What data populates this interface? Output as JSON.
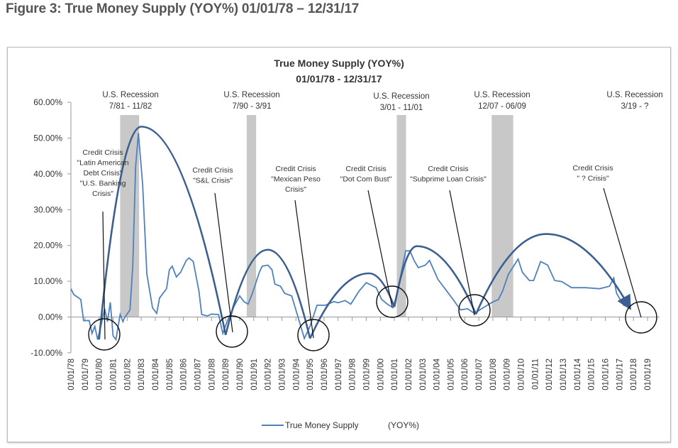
{
  "page_title": "Figure 3: True Money Supply (YOY%)  01/01/78 – 12/31/17",
  "chart_data": {
    "type": "line",
    "title": "True Money Supply (YOY%)",
    "subtitle": "01/01/78 - 12/31/17",
    "ylim": [
      -10,
      60
    ],
    "y_ticks": [
      "-10.00%",
      "0.00%",
      "10.00%",
      "20.00%",
      "30.00%",
      "40.00%",
      "50.00%",
      "60.00%"
    ],
    "x_ticks": [
      "01/01/78",
      "01/01/79",
      "01/01/80",
      "01/01/81",
      "01/01/82",
      "01/01/83",
      "01/01/84",
      "01/01/85",
      "01/01/86",
      "01/01/87",
      "01/01/88",
      "01/01/89",
      "01/01/90",
      "01/01/91",
      "01/01/92",
      "01/01/93",
      "01/01/94",
      "01/01/95",
      "01/01/96",
      "01/01/97",
      "01/01/98",
      "01/01/99",
      "01/01/00",
      "01/01/01",
      "01/01/02",
      "01/01/03",
      "01/01/04",
      "01/01/05",
      "01/01/06",
      "01/01/07",
      "01/01/08",
      "01/01/09",
      "01/01/10",
      "01/01/11",
      "01/01/12",
      "01/01/13",
      "01/01/14",
      "01/01/15",
      "01/01/16",
      "01/01/17",
      "01/01/18",
      "01/01/19"
    ],
    "grid": false,
    "legend": {
      "position": "bottom",
      "label": "True Money Supply",
      "suffix": "(YOY%)"
    },
    "series": [
      {
        "name": "True Money Supply",
        "color": "#4f81bd",
        "points": [
          [
            1978.0,
            7.9
          ],
          [
            1978.2,
            6.3
          ],
          [
            1978.7,
            4.9
          ],
          [
            1978.9,
            -1
          ],
          [
            1979.3,
            -1
          ],
          [
            1979.5,
            -4.6
          ],
          [
            1979.7,
            -2.6
          ],
          [
            1979.9,
            -6.3
          ],
          [
            1980.2,
            -1.3
          ],
          [
            1980.4,
            2.3
          ],
          [
            1980.6,
            -1.3
          ],
          [
            1980.8,
            4.1
          ],
          [
            1981.0,
            -5.3
          ],
          [
            1981.2,
            -6.3
          ],
          [
            1981.5,
            0.7
          ],
          [
            1981.7,
            -1.3
          ],
          [
            1981.8,
            -0.3
          ],
          [
            1982.2,
            2
          ],
          [
            1982.4,
            14.5
          ],
          [
            1982.6,
            42
          ],
          [
            1982.8,
            51.4
          ],
          [
            1983.1,
            37
          ],
          [
            1983.4,
            12
          ],
          [
            1983.8,
            2.6
          ],
          [
            1984.1,
            1
          ],
          [
            1984.3,
            5.3
          ],
          [
            1984.8,
            7.9
          ],
          [
            1985.0,
            13.2
          ],
          [
            1985.2,
            14.2
          ],
          [
            1985.5,
            11.2
          ],
          [
            1985.8,
            12.5
          ],
          [
            1986.2,
            15.8
          ],
          [
            1986.4,
            16.5
          ],
          [
            1986.7,
            15.5
          ],
          [
            1987.1,
            7.3
          ],
          [
            1987.3,
            0.7
          ],
          [
            1987.7,
            0.3
          ],
          [
            1988.0,
            0.8
          ],
          [
            1988.5,
            0.7
          ],
          [
            1988.8,
            -4.6
          ],
          [
            1989.1,
            -1.3
          ],
          [
            1989.6,
            3
          ],
          [
            1990.0,
            5.9
          ],
          [
            1990.3,
            4.3
          ],
          [
            1990.6,
            3.6
          ],
          [
            1990.9,
            6.6
          ],
          [
            1991.4,
            12.5
          ],
          [
            1991.6,
            14.2
          ],
          [
            1992.0,
            14.5
          ],
          [
            1992.3,
            13.2
          ],
          [
            1992.5,
            9.2
          ],
          [
            1992.9,
            8.6
          ],
          [
            1993.2,
            6.6
          ],
          [
            1993.7,
            5.9
          ],
          [
            1994.6,
            -6
          ],
          [
            1995.0,
            -2.6
          ],
          [
            1995.5,
            3.3
          ],
          [
            1996.1,
            3.3
          ],
          [
            1996.7,
            4.3
          ],
          [
            1997.0,
            4
          ],
          [
            1997.5,
            4.6
          ],
          [
            1997.9,
            3.6
          ],
          [
            1998.5,
            7.3
          ],
          [
            1999.0,
            9.6
          ],
          [
            1999.7,
            8.2
          ],
          [
            2000.1,
            4.9
          ],
          [
            2000.5,
            3.6
          ],
          [
            2000.9,
            2.6
          ],
          [
            2001.2,
            6.6
          ],
          [
            2001.8,
            18.5
          ],
          [
            2002.1,
            18.5
          ],
          [
            2002.4,
            15.8
          ],
          [
            2002.7,
            13.8
          ],
          [
            2003.2,
            14.5
          ],
          [
            2003.5,
            15.8
          ],
          [
            2004.1,
            10.5
          ],
          [
            2004.6,
            7.9
          ],
          [
            2005.1,
            5.3
          ],
          [
            2005.7,
            2
          ],
          [
            2006.2,
            2.3
          ],
          [
            2006.7,
            1
          ],
          [
            2007.2,
            2.3
          ],
          [
            2007.9,
            4
          ],
          [
            2008.4,
            4.9
          ],
          [
            2008.7,
            7.3
          ],
          [
            2009.1,
            11.9
          ],
          [
            2009.8,
            16.2
          ],
          [
            2010.1,
            12.5
          ],
          [
            2010.6,
            10.2
          ],
          [
            2010.9,
            10.2
          ],
          [
            2011.4,
            15.5
          ],
          [
            2011.9,
            14.5
          ],
          [
            2012.4,
            10.2
          ],
          [
            2012.9,
            9.9
          ],
          [
            2013.6,
            8.2
          ],
          [
            2014.6,
            8.2
          ],
          [
            2015.6,
            7.9
          ],
          [
            2016.3,
            8.6
          ],
          [
            2016.6,
            10.9
          ],
          [
            2016.8,
            6.6
          ],
          [
            2017.3,
            3.3
          ],
          [
            2017.8,
            2.6
          ]
        ]
      }
    ],
    "trend_color": "#3b5f8f",
    "trend_arcs": [
      {
        "start": [
          1980.0,
          -6.3
        ],
        "peak": [
          1983.0,
          53.2
        ],
        "end": [
          1989.0,
          -5.0
        ]
      },
      {
        "start": [
          1989.0,
          -5.0
        ],
        "peak": [
          1992.0,
          18.8
        ],
        "end": [
          1995.0,
          -6.0
        ]
      },
      {
        "start": [
          1995.0,
          -6.0
        ],
        "peak": [
          1999.2,
          12.2
        ],
        "end": [
          2001.0,
          2.8
        ]
      },
      {
        "start": [
          2001.0,
          2.8
        ],
        "peak": [
          2002.6,
          19.8
        ],
        "end": [
          2006.8,
          0.8
        ]
      },
      {
        "start": [
          2006.8,
          0.8
        ],
        "peak": [
          2011.8,
          23.2
        ],
        "end": [
          2017.7,
          2.8
        ],
        "arrow": true
      }
    ],
    "recessions": [
      {
        "label": "U.S. Recession",
        "dates": "7/81 - 11/82",
        "from": 1981.5,
        "to": 1982.85
      },
      {
        "label": "U.S. Recession",
        "dates": "7/90 - 3/91",
        "from": 1990.5,
        "to": 1991.17
      },
      {
        "label": "U.S. Recession",
        "dates": "3/01 - 11/01",
        "from": 2001.17,
        "to": 2001.83
      },
      {
        "label": "U.S. Recession",
        "dates": "12/07 - 06/09",
        "from": 2007.92,
        "to": 2009.45
      },
      {
        "label": "U.S. Recession",
        "dates": "3/19 - ?"
      }
    ],
    "credit_crises": [
      {
        "lines": [
          "Credit Crisis",
          "\"Latin American",
          "Debt Crisis\"",
          "\"U.S. Banking",
          "Crisis\""
        ]
      },
      {
        "lines": [
          "Credit Crisis",
          "\"S&L Crisis\""
        ]
      },
      {
        "lines": [
          "Credit Crisis",
          "\"Mexican Peso",
          "Crisis\""
        ]
      },
      {
        "lines": [
          "Credit Crisis",
          "\"Dot Com Bust\""
        ]
      },
      {
        "lines": [
          "Credit Crisis",
          "\"Subprime Loan Crisis\""
        ]
      },
      {
        "lines": [
          "Credit Crisis",
          "\" ? Crisis\""
        ]
      }
    ]
  }
}
